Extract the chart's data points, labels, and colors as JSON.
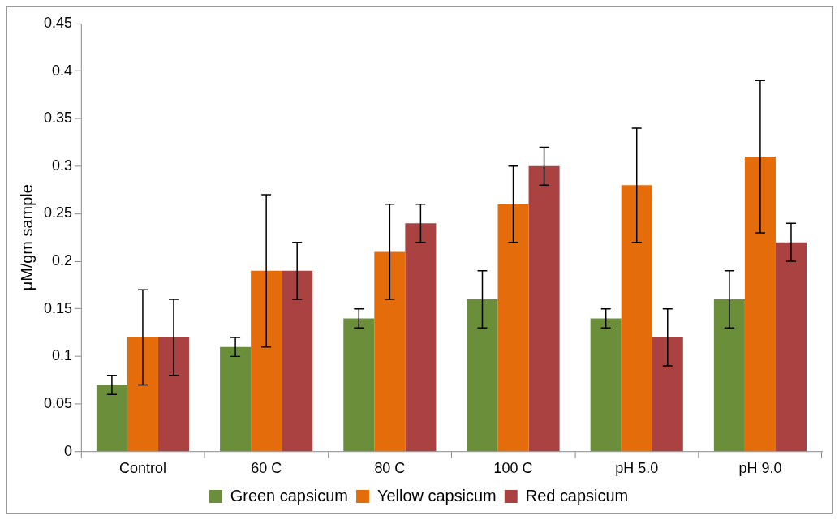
{
  "chart_data": {
    "type": "bar",
    "ylabel": "μM/gm sample",
    "categories": [
      "Control",
      "60 C",
      "80 C",
      "100 C",
      "pH 5.0",
      "pH 9.0"
    ],
    "series": [
      {
        "name": "Green capsicum",
        "color": "#6b8e3a",
        "values": [
          0.07,
          0.11,
          0.14,
          0.16,
          0.14,
          0.16
        ],
        "errors": [
          0.01,
          0.01,
          0.01,
          0.03,
          0.01,
          0.03
        ]
      },
      {
        "name": "Yellow capsicum",
        "color": "#e46c0a",
        "values": [
          0.12,
          0.19,
          0.21,
          0.26,
          0.28,
          0.31
        ],
        "errors": [
          0.05,
          0.08,
          0.05,
          0.04,
          0.06,
          0.08
        ]
      },
      {
        "name": "Red capsicum",
        "color": "#ab4242",
        "values": [
          0.12,
          0.19,
          0.24,
          0.3,
          0.12,
          0.22
        ],
        "errors": [
          0.04,
          0.03,
          0.02,
          0.02,
          0.03,
          0.02
        ]
      }
    ],
    "ylim": [
      0,
      0.45
    ],
    "yticks": [
      0,
      0.05,
      0.1,
      0.15,
      0.2,
      0.25,
      0.3,
      0.35,
      0.4,
      0.45
    ],
    "grid": false,
    "legend": "bottom"
  }
}
